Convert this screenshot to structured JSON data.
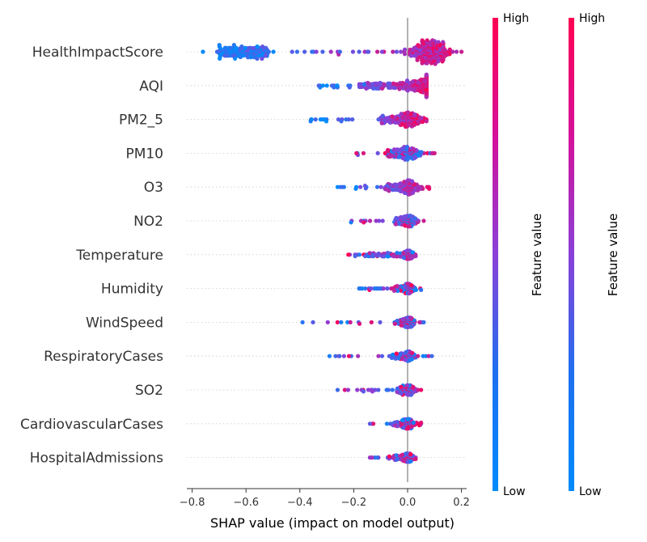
{
  "chart_data": {
    "type": "scatter",
    "subtype": "shap-beeswarm",
    "xlabel": "SHAP value (impact on model output)",
    "xlim": [
      -0.8,
      0.2
    ],
    "xticks": [
      "−0.8",
      "−0.6",
      "−0.4",
      "−0.2",
      "0.0",
      "0.2"
    ],
    "x_tick_values": [
      -0.8,
      -0.6,
      -0.4,
      -0.2,
      0.0,
      0.2
    ],
    "zero_line": 0.0,
    "color_low": "#008bfb",
    "color_high": "#ff0052",
    "colorbars": [
      {
        "label": "Feature value",
        "high": "High",
        "low": "Low"
      },
      {
        "label": "Feature value",
        "high": "High",
        "low": "Low"
      }
    ],
    "features": [
      {
        "name": "HealthImpactScore",
        "min": -0.76,
        "max": 0.2,
        "dense_min": -0.7,
        "dense_max": -0.52,
        "peak": 0.08,
        "spread": 0.035,
        "amp": 1.0,
        "n": 420,
        "trend": "high-right"
      },
      {
        "name": "AQI",
        "min": -0.33,
        "max": 0.07,
        "dense_min": -0.18,
        "dense_max": 0.02,
        "peak": 0.045,
        "spread": 0.025,
        "amp": 0.95,
        "n": 340,
        "trend": "high-right"
      },
      {
        "name": "PM2_5",
        "min": -0.36,
        "max": 0.07,
        "dense_min": -0.1,
        "dense_max": 0.0,
        "peak": 0.01,
        "spread": 0.02,
        "amp": 0.6,
        "n": 260,
        "trend": "high-right"
      },
      {
        "name": "PM10",
        "min": -0.19,
        "max": 0.1,
        "dense_min": -0.08,
        "dense_max": 0.0,
        "peak": 0.005,
        "spread": 0.02,
        "amp": 0.55,
        "n": 240,
        "trend": "mixed"
      },
      {
        "name": "O3",
        "min": -0.26,
        "max": 0.08,
        "dense_min": -0.08,
        "dense_max": 0.02,
        "peak": 0.005,
        "spread": 0.02,
        "amp": 0.6,
        "n": 250,
        "trend": "high-right"
      },
      {
        "name": "NO2",
        "min": -0.21,
        "max": 0.06,
        "dense_min": -0.05,
        "dense_max": 0.02,
        "peak": 0.003,
        "spread": 0.015,
        "amp": 0.45,
        "n": 220,
        "trend": "mixed"
      },
      {
        "name": "Temperature",
        "min": -0.22,
        "max": 0.03,
        "dense_min": -0.15,
        "dense_max": 0.02,
        "peak": 0.002,
        "spread": 0.01,
        "amp": 0.35,
        "n": 220,
        "trend": "mixed"
      },
      {
        "name": "Humidity",
        "min": -0.18,
        "max": 0.05,
        "dense_min": -0.05,
        "dense_max": 0.02,
        "peak": 0.002,
        "spread": 0.012,
        "amp": 0.4,
        "n": 210,
        "trend": "mixed"
      },
      {
        "name": "WindSpeed",
        "min": -0.39,
        "max": 0.06,
        "dense_min": -0.04,
        "dense_max": 0.02,
        "peak": 0.002,
        "spread": 0.012,
        "amp": 0.4,
        "n": 210,
        "trend": "mixed"
      },
      {
        "name": "RespiratoryCases",
        "min": -0.29,
        "max": 0.09,
        "dense_min": -0.06,
        "dense_max": 0.02,
        "peak": 0.002,
        "spread": 0.012,
        "amp": 0.4,
        "n": 210,
        "trend": "mixed"
      },
      {
        "name": "SO2",
        "min": -0.26,
        "max": 0.05,
        "dense_min": -0.04,
        "dense_max": 0.02,
        "peak": 0.002,
        "spread": 0.012,
        "amp": 0.4,
        "n": 210,
        "trend": "mixed"
      },
      {
        "name": "CardiovascularCases",
        "min": -0.14,
        "max": 0.05,
        "dense_min": -0.05,
        "dense_max": 0.02,
        "peak": 0.002,
        "spread": 0.012,
        "amp": 0.4,
        "n": 200,
        "trend": "mixed"
      },
      {
        "name": "HospitalAdmissions",
        "min": -0.14,
        "max": 0.03,
        "dense_min": -0.05,
        "dense_max": 0.01,
        "peak": 0.002,
        "spread": 0.01,
        "amp": 0.35,
        "n": 190,
        "trend": "mixed"
      }
    ]
  }
}
